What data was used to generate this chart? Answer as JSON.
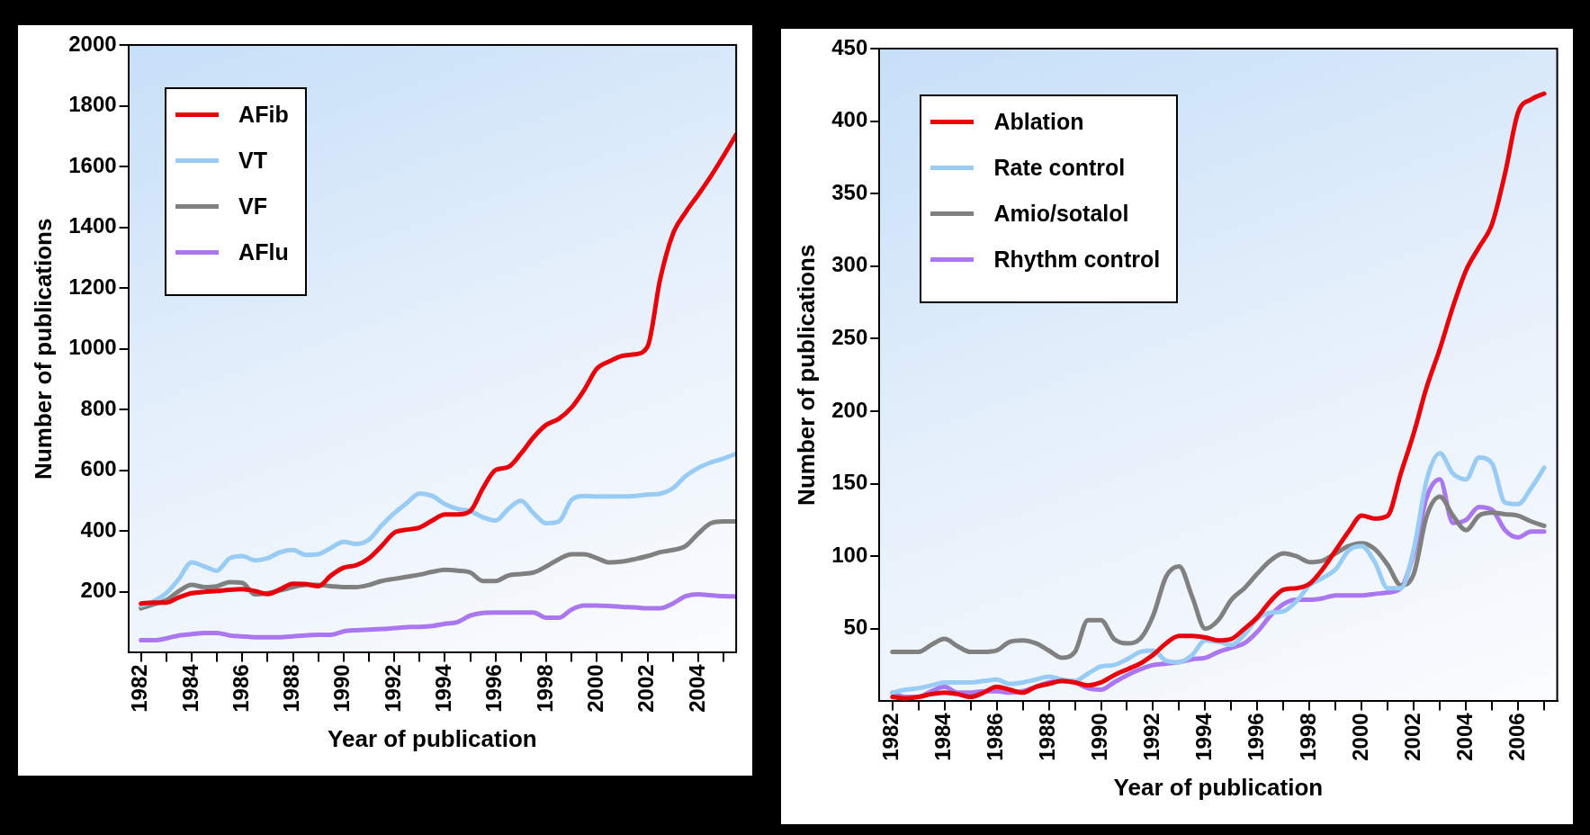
{
  "chart_data": [
    {
      "type": "line",
      "xlabel": "Year of publication",
      "ylabel": "Number of publications",
      "legend": "top left",
      "xlim": [
        1981.5,
        2005.5
      ],
      "ylim": [
        0,
        2000
      ],
      "xticks": [
        1982,
        {
          "value": 1983,
          "label": null
        },
        1984,
        {
          "value": 1985,
          "label": null
        },
        1986,
        {
          "value": 1987,
          "label": null
        },
        1988,
        {
          "value": 1989,
          "label": null
        },
        1990,
        {
          "value": 1991,
          "label": null
        },
        1992,
        {
          "value": 1993,
          "label": null
        },
        1994,
        {
          "value": 1995,
          "label": null
        },
        1996,
        {
          "value": 1997,
          "label": null
        },
        1998,
        {
          "value": 1999,
          "label": null
        },
        2000,
        {
          "value": 2001,
          "label": null
        },
        2002,
        {
          "value": 2003,
          "label": null
        },
        2004,
        {
          "value": 2005,
          "label": null
        }
      ],
      "yticks": [
        200,
        400,
        600,
        800,
        1000,
        1200,
        1400,
        1600,
        1800,
        2000
      ],
      "x": [
        1982,
        1982.5,
        1983,
        1983.5,
        1984,
        1984.5,
        1985,
        1985.5,
        1986,
        1986.5,
        1987,
        1987.5,
        1988,
        1988.5,
        1989,
        1989.5,
        1990,
        1990.5,
        1991,
        1991.5,
        1992,
        1992.5,
        1993,
        1993.5,
        1994,
        1994.5,
        1995,
        1995.5,
        1996,
        1996.5,
        1997,
        1997.5,
        1998,
        1998.5,
        1999,
        1999.5,
        2000,
        2000.5,
        2001,
        2001.5,
        2002,
        2002.5,
        2003,
        2003.5,
        2004,
        2004.5,
        2005,
        2005.5
      ],
      "series": [
        {
          "name": "AFib",
          "color": "#e8000b",
          "values": [
            162,
            165,
            165,
            182,
            196,
            200,
            203,
            207,
            209,
            203,
            193,
            209,
            227,
            226,
            219,
            254,
            280,
            288,
            311,
            351,
            395,
            405,
            412,
            435,
            455,
            455,
            466,
            541,
            601,
            611,
            655,
            709,
            750,
            770,
            807,
            865,
            935,
            959,
            977,
            982,
            1007,
            1230,
            1378,
            1449,
            1507,
            1568,
            1635,
            1705
          ]
        },
        {
          "name": "VT",
          "color": "#99ccf5",
          "values": [
            155,
            169,
            196,
            243,
            297,
            284,
            270,
            311,
            318,
            304,
            311,
            331,
            338,
            322,
            324,
            345,
            365,
            358,
            372,
            419,
            459,
            493,
            524,
            516,
            489,
            473,
            466,
            446,
            435,
            473,
            500,
            459,
            426,
            432,
            503,
            516,
            514,
            514,
            514,
            516,
            520,
            523,
            541,
            581,
            608,
            626,
            639,
            655
          ]
        },
        {
          "name": "VF",
          "color": "#808080",
          "values": [
            146,
            159,
            173,
            203,
            223,
            216,
            219,
            232,
            230,
            192,
            196,
            205,
            216,
            223,
            223,
            219,
            216,
            216,
            223,
            236,
            243,
            250,
            257,
            266,
            273,
            270,
            264,
            236,
            236,
            254,
            259,
            264,
            284,
            308,
            324,
            324,
            311,
            297,
            300,
            308,
            318,
            331,
            338,
            351,
            392,
            426,
            432,
            432
          ]
        },
        {
          "name": "AFlu",
          "color": "#aa77f0",
          "values": [
            41,
            41,
            47,
            57,
            61,
            65,
            65,
            57,
            54,
            51,
            51,
            51,
            54,
            57,
            59,
            59,
            70,
            74,
            76,
            78,
            81,
            84,
            85,
            88,
            95,
            101,
            122,
            131,
            132,
            132,
            132,
            132,
            115,
            115,
            142,
            155,
            155,
            154,
            151,
            149,
            146,
            146,
            162,
            186,
            192,
            189,
            186,
            185
          ]
        }
      ]
    },
    {
      "type": "line",
      "xlabel": "Year of publication",
      "ylabel": "Number of publications",
      "legend": "top left",
      "xlim": [
        1981.5,
        2007.5
      ],
      "ylim": [
        0,
        450
      ],
      "xticks": [
        1982,
        {
          "value": 1983,
          "label": null
        },
        1984,
        {
          "value": 1985,
          "label": null
        },
        1986,
        {
          "value": 1987,
          "label": null
        },
        1988,
        {
          "value": 1989,
          "label": null
        },
        1990,
        {
          "value": 1991,
          "label": null
        },
        1992,
        {
          "value": 1993,
          "label": null
        },
        1994,
        {
          "value": 1995,
          "label": null
        },
        1996,
        {
          "value": 1997,
          "label": null
        },
        1998,
        {
          "value": 1999,
          "label": null
        },
        2000,
        {
          "value": 2001,
          "label": null
        },
        2002,
        {
          "value": 2003,
          "label": null
        },
        2004,
        {
          "value": 2005,
          "label": null
        },
        2006,
        {
          "value": 2007,
          "label": null
        }
      ],
      "yticks": [
        50,
        100,
        150,
        200,
        250,
        300,
        350,
        400,
        450
      ],
      "x": [
        1982,
        1982.5,
        1983,
        1983.5,
        1984,
        1984.5,
        1985,
        1985.5,
        1986,
        1986.5,
        1987,
        1987.5,
        1988,
        1988.5,
        1989,
        1989.5,
        1990,
        1990.5,
        1991,
        1991.5,
        1992,
        1992.5,
        1993,
        1993.5,
        1994,
        1994.5,
        1995,
        1995.5,
        1996,
        1996.5,
        1997,
        1997.5,
        1998,
        1998.5,
        1999,
        1999.5,
        2000,
        2000.5,
        2001,
        2001.5,
        2002,
        2002.5,
        2003,
        2003.5,
        2004,
        2004.5,
        2005,
        2005.5,
        2006,
        2006.5,
        2007
      ],
      "series": [
        {
          "name": "Ablation",
          "color": "#e8000b",
          "values": [
            3,
            2,
            3,
            5,
            6,
            5,
            3,
            6,
            10,
            8,
            6,
            10,
            12,
            14,
            13,
            11,
            13,
            18,
            22,
            26,
            32,
            40,
            45,
            45,
            44,
            42,
            43,
            50,
            58,
            69,
            77,
            78,
            81,
            91,
            104,
            117,
            128,
            126,
            128,
            157,
            185,
            217,
            243,
            272,
            297,
            313,
            329,
            364,
            406,
            415,
            419
          ]
        },
        {
          "name": "Rate control",
          "color": "#99ccf5",
          "values": [
            6,
            8,
            9,
            11,
            13,
            13,
            13,
            14,
            15,
            12,
            13,
            15,
            17,
            15,
            14,
            19,
            24,
            25,
            29,
            34,
            35,
            28,
            27,
            32,
            42,
            41,
            39,
            46,
            57,
            61,
            62,
            69,
            80,
            85,
            91,
            104,
            107,
            96,
            78,
            78,
            105,
            153,
            171,
            157,
            153,
            168,
            164,
            137,
            136,
            147,
            161
          ]
        },
        {
          "name": "Amio/sotalol",
          "color": "#808080",
          "values": [
            34,
            34,
            34,
            39,
            43,
            38,
            34,
            34,
            35,
            41,
            42,
            40,
            35,
            30,
            34,
            56,
            56,
            43,
            40,
            43,
            59,
            86,
            93,
            72,
            50,
            56,
            70,
            78,
            88,
            97,
            102,
            100,
            96,
            97,
            102,
            107,
            109,
            105,
            94,
            80,
            88,
            128,
            141,
            128,
            118,
            128,
            130,
            129,
            128,
            124,
            121
          ]
        },
        {
          "name": "Rhythm control",
          "color": "#aa77f0",
          "values": [
            6,
            3,
            3,
            7,
            10,
            6,
            6,
            7,
            7,
            6,
            7,
            10,
            13,
            14,
            13,
            9,
            8,
            13,
            18,
            22,
            25,
            26,
            27,
            29,
            30,
            34,
            37,
            40,
            48,
            59,
            67,
            70,
            70,
            71,
            73,
            73,
            73,
            74,
            75,
            78,
            102,
            141,
            153,
            123,
            125,
            134,
            132,
            118,
            113,
            117,
            117
          ]
        }
      ]
    }
  ]
}
